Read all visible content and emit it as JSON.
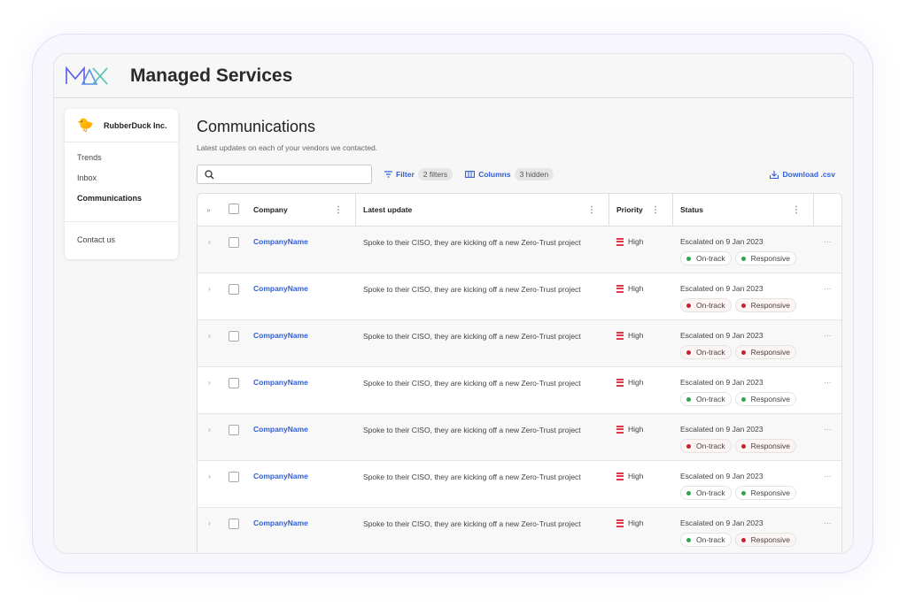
{
  "app": {
    "title": "Managed Services",
    "logo_text": "MAX"
  },
  "sidebar": {
    "org": "RubberDuck Inc.",
    "items": [
      {
        "label": "Trends"
      },
      {
        "label": "Inbox"
      },
      {
        "label": "Communications",
        "active": true
      }
    ],
    "contact": "Contact us"
  },
  "page": {
    "title": "Communications",
    "subtitle": "Latest updates on each of your vendors we contacted."
  },
  "toolbar": {
    "search_placeholder": "",
    "filter": "Filter",
    "filter_count": "2 filters",
    "columns": "Columns",
    "columns_hidden": "3 hidden",
    "download": "Download .csv"
  },
  "table": {
    "headers": {
      "company": "Company",
      "update": "Latest update",
      "priority": "Priority",
      "status": "Status"
    },
    "rows": [
      {
        "company": "CompanyName",
        "update": "Spoke to their CISO, they are kicking off a new Zero-Trust project",
        "priority": "High",
        "status": "Escalated on 9 Jan 2023",
        "pill1": "On-track",
        "pill1_state": "green",
        "pill2": "Responsive",
        "pill2_state": "green"
      },
      {
        "company": "CompanyName",
        "update": "Spoke to their CISO, they are kicking off a new Zero-Trust project",
        "priority": "High",
        "status": "Escalated on 9 Jan 2023",
        "pill1": "On-track",
        "pill1_state": "red",
        "pill2": "Responsive",
        "pill2_state": "red"
      },
      {
        "company": "CompanyName",
        "update": "Spoke to their CISO, they are kicking off a new Zero-Trust project",
        "priority": "High",
        "status": "Escalated on 9 Jan 2023",
        "pill1": "On-track",
        "pill1_state": "red",
        "pill2": "Responsive",
        "pill2_state": "red"
      },
      {
        "company": "CompanyName",
        "update": "Spoke to their CISO, they are kicking off a new Zero-Trust project",
        "priority": "High",
        "status": "Escalated on 9 Jan 2023",
        "pill1": "On-track",
        "pill1_state": "green",
        "pill2": "Responsive",
        "pill2_state": "green"
      },
      {
        "company": "CompanyName",
        "update": "Spoke to their CISO, they are kicking off a new Zero-Trust project",
        "priority": "High",
        "status": "Escalated on 9 Jan 2023",
        "pill1": "On-track",
        "pill1_state": "red",
        "pill2": "Responsive",
        "pill2_state": "red"
      },
      {
        "company": "CompanyName",
        "update": "Spoke to their CISO, they are kicking off a new Zero-Trust project",
        "priority": "High",
        "status": "Escalated on 9 Jan 2023",
        "pill1": "On-track",
        "pill1_state": "green",
        "pill2": "Responsive",
        "pill2_state": "green"
      },
      {
        "company": "CompanyName",
        "update": "Spoke to their CISO, they are kicking off a new Zero-Trust project",
        "priority": "High",
        "status": "Escalated on 9 Jan 2023",
        "pill1": "On-track",
        "pill1_state": "green",
        "pill2": "Responsive",
        "pill2_state": "red"
      }
    ]
  },
  "colors": {
    "accent": "#2f5fd8",
    "green": "#2ea44f",
    "red": "#c8202e",
    "priority_high": "#e0384a"
  }
}
